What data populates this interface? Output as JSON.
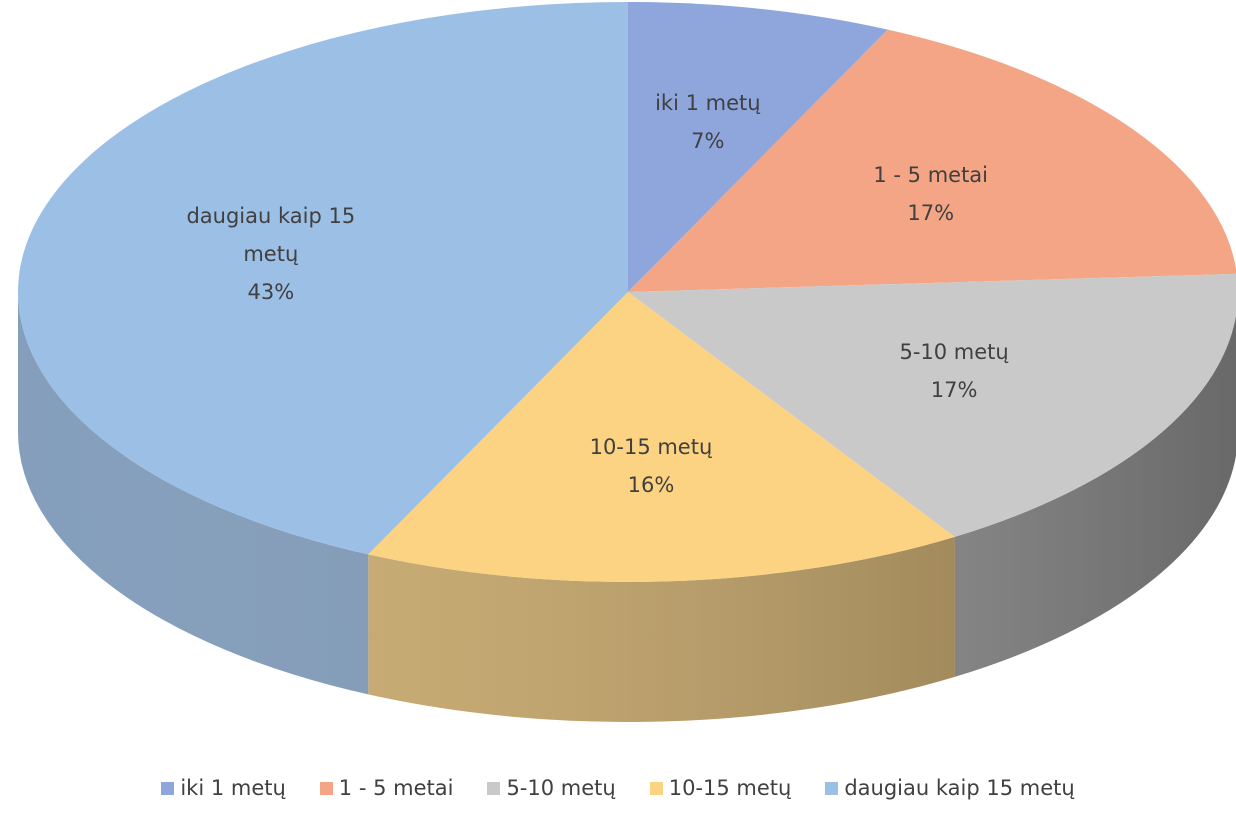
{
  "chart_data": {
    "type": "pie3d",
    "categories": [
      "iki 1 metų",
      "1 - 5 metai",
      "5-10 metų",
      "10-15 metų",
      "daugiau kaip 15 metų"
    ],
    "values": [
      7,
      17,
      17,
      16,
      43
    ],
    "value_labels": [
      "7%",
      "17%",
      "17%",
      "16%",
      "43%"
    ],
    "colors": [
      "#8fa6dc",
      "#f3a585",
      "#c9c9c9",
      "#fcd383",
      "#9cbfe6"
    ],
    "legend": "bottom"
  }
}
